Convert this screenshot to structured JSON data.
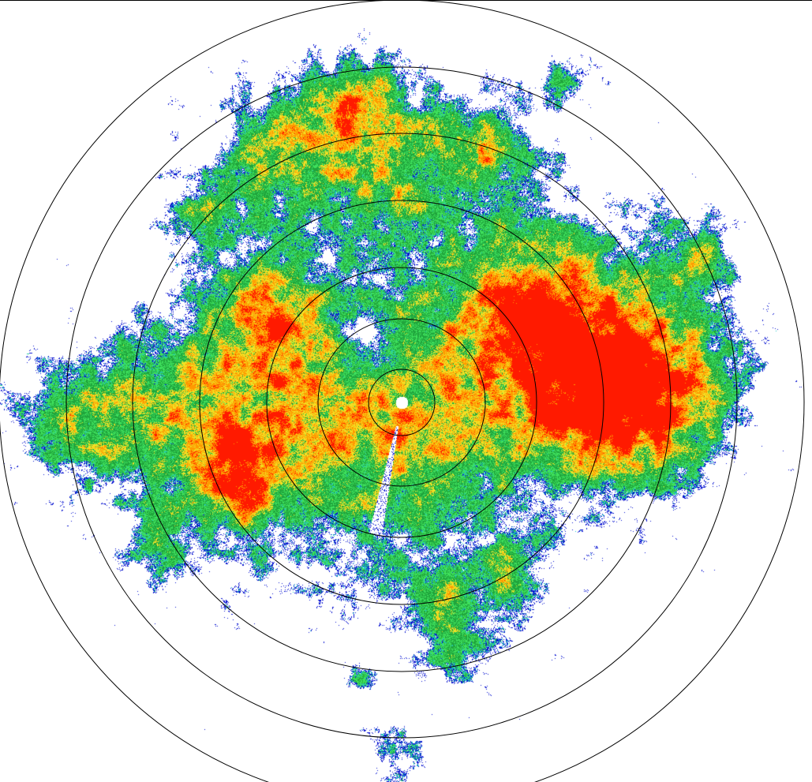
{
  "radar": {
    "product": "reflectivity-ppi",
    "range_ring_count": 7,
    "palette": [
      "#0a14d0",
      "#22c6c8",
      "#3ee05c",
      "#20a53c",
      "#f2e024",
      "#ff9a00",
      "#ff1a00"
    ],
    "ring_color": "#000000",
    "background": "#ffffff"
  }
}
